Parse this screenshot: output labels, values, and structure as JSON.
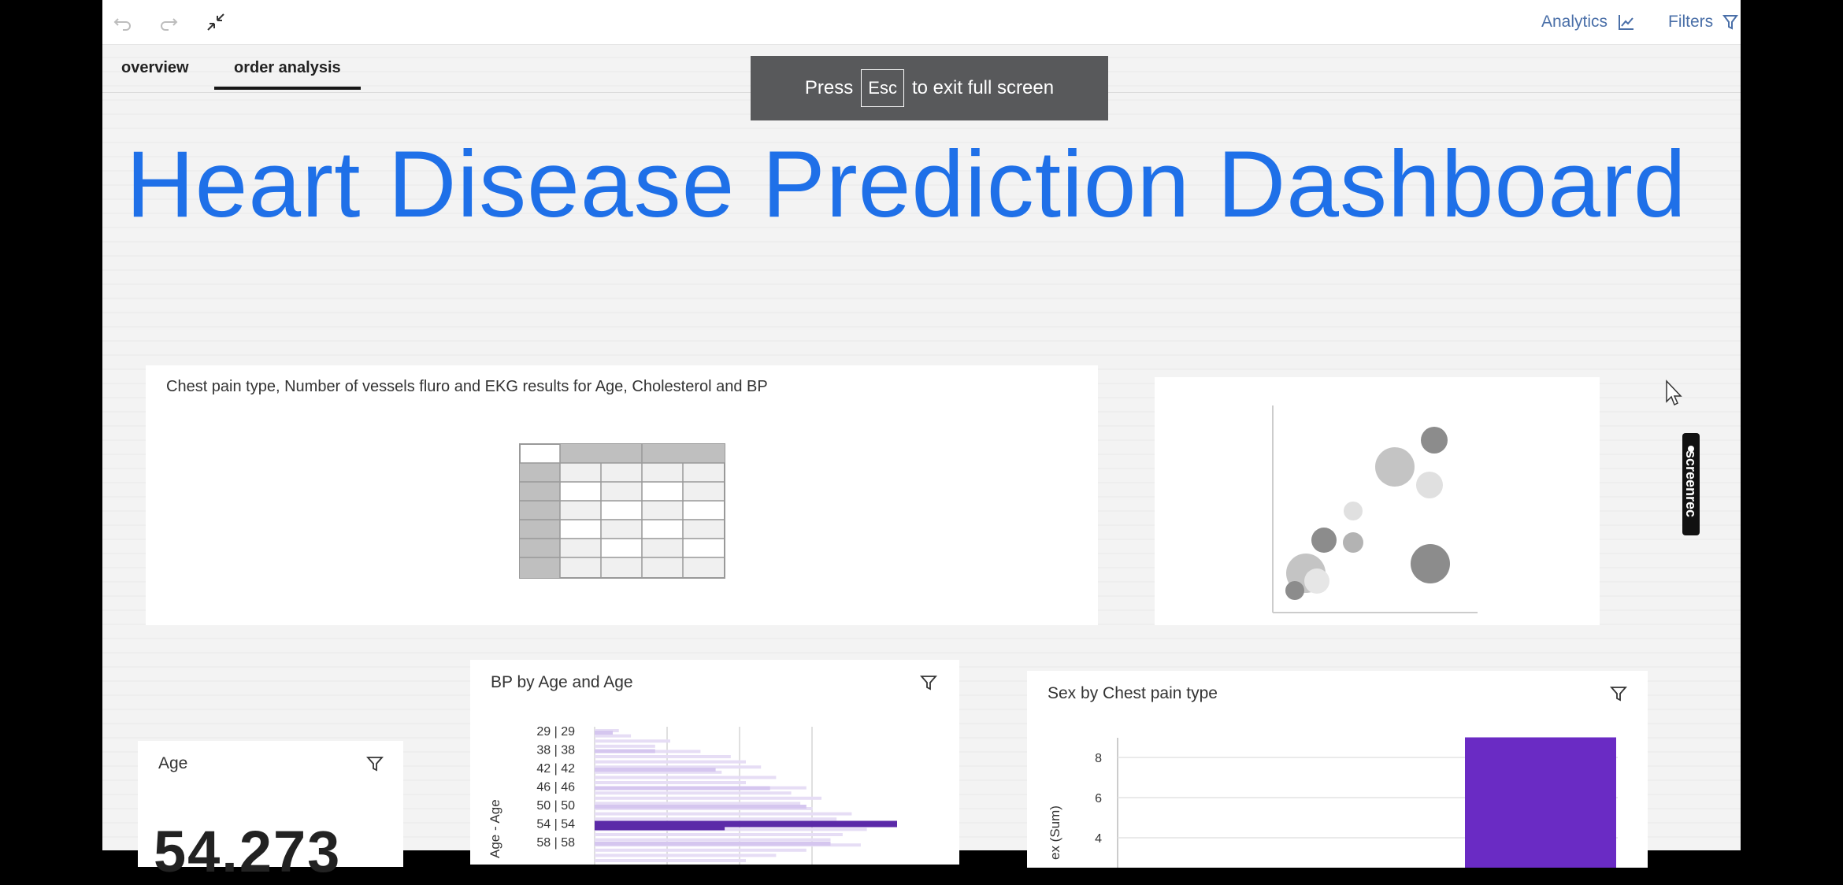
{
  "toolbar": {
    "undo_icon": "undo-icon",
    "redo_icon": "redo-icon",
    "collapse_icon": "exit-fullscreen-icon",
    "analytics_label": "Analytics",
    "filters_label": "Filters"
  },
  "tabs": [
    {
      "label": "overview",
      "active": false
    },
    {
      "label": "order analysis",
      "active": true
    }
  ],
  "fullscreen_toast": {
    "prefix": "Press",
    "key": "Esc",
    "suffix": "to exit full screen"
  },
  "dashboard_title": "Heart Disease Prediction Dashboard",
  "cards": {
    "table_card": {
      "title": "Chest pain type, Number of vessels fluro and EKG results for Age, Cholesterol and BP"
    },
    "age_card": {
      "title": "Age",
      "value": "54.273"
    },
    "bp_card": {
      "title": "BP by Age and Age",
      "axis_label": "Age - Age",
      "row_labels": [
        "29 | 29",
        "38 | 38",
        "42 | 42",
        "46 | 46",
        "50 | 50",
        "54 | 54",
        "58 | 58"
      ]
    },
    "sex_card": {
      "title": "Sex by Chest pain type",
      "axis_label": "ex (Sum)",
      "ticks": [
        "8",
        "6",
        "4"
      ]
    }
  },
  "screenrec_badge": "screenrec",
  "colors": {
    "title_blue": "#1f70e8",
    "accent_purple": "#6a2bc4",
    "light_purple": "#e4dcf4",
    "link_blue": "#4a6fa8",
    "toast_bg": "#58595b"
  },
  "chart_data": [
    {
      "type": "bar",
      "orientation": "horizontal",
      "title": "BP by Age and Age",
      "ylabel": "Age - Age",
      "categories": [
        "29 | 29",
        "38 | 38",
        "42 | 42",
        "46 | 46",
        "50 | 50",
        "54 | 54",
        "58 | 58"
      ],
      "values": [
        0.06,
        0.2,
        0.4,
        0.58,
        0.7,
        1.0,
        0.78
      ],
      "highlighted_category": "54 | 54"
    },
    {
      "type": "bar",
      "title": "Sex by Chest pain type",
      "ylabel": "ex (Sum)",
      "yticks": [
        4,
        6,
        8
      ],
      "values": [
        9
      ]
    }
  ]
}
